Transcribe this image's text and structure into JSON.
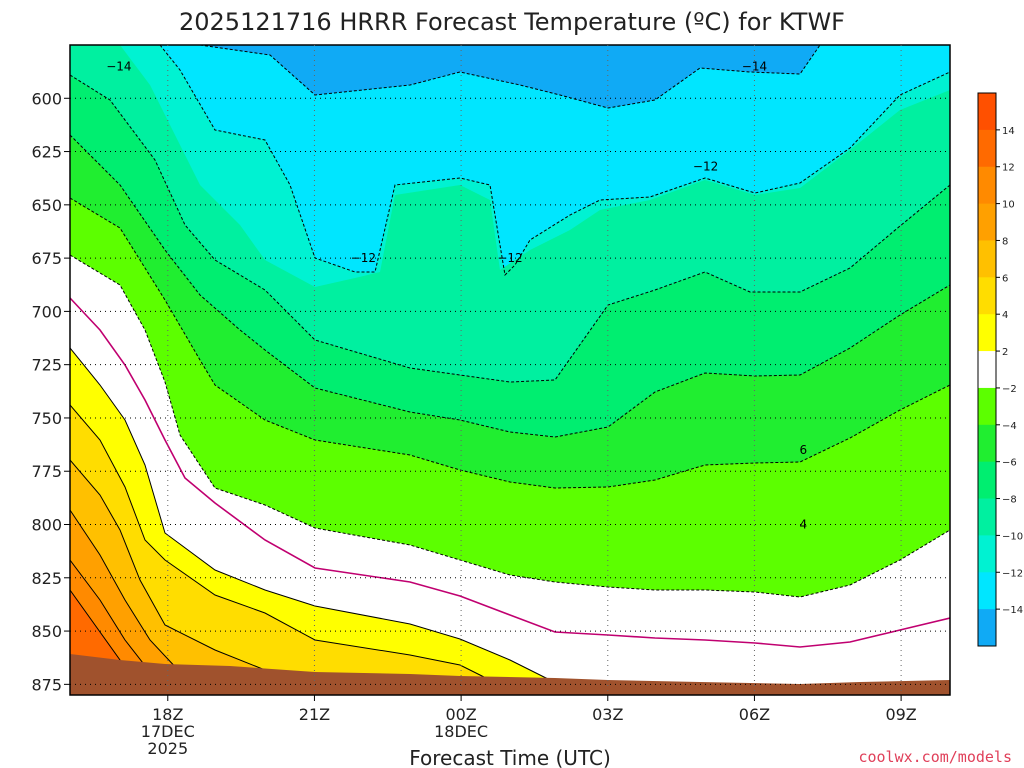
{
  "chart_data": {
    "type": "heatmap",
    "title": "2025121716 HRRR Forecast Temperature (ºC) for KTWF",
    "xlabel": "Forecast Time (UTC)",
    "ylabel": "",
    "xlim": [
      16,
      34
    ],
    "ylim": [
      575,
      880
    ],
    "y_ticks": [
      600,
      625,
      650,
      675,
      700,
      725,
      750,
      775,
      800,
      825,
      850,
      875
    ],
    "x_ticks": [
      {
        "hour": 18,
        "label": "18Z",
        "sub1": "17DEC",
        "sub2": "2025"
      },
      {
        "hour": 21,
        "label": "21Z",
        "sub1": "",
        "sub2": ""
      },
      {
        "hour": 24,
        "label": "00Z",
        "sub1": "18DEC",
        "sub2": ""
      },
      {
        "hour": 27,
        "label": "03Z",
        "sub1": "",
        "sub2": ""
      },
      {
        "hour": 30,
        "label": "06Z",
        "sub1": "",
        "sub2": ""
      },
      {
        "hour": 33,
        "label": "09Z",
        "sub1": "",
        "sub2": ""
      }
    ],
    "grid": true,
    "colorbar": {
      "position": "right",
      "bins": [
        {
          "lo": -16,
          "hi": -14,
          "color": "#10aaf5"
        },
        {
          "lo": -14,
          "hi": -12,
          "color": "#00e6ff"
        },
        {
          "lo": -12,
          "hi": -10,
          "color": "#00f2d2"
        },
        {
          "lo": -10,
          "hi": -8,
          "color": "#00f0a0"
        },
        {
          "lo": -8,
          "hi": -6,
          "color": "#00ee70"
        },
        {
          "lo": -6,
          "hi": -4,
          "color": "#20ee30"
        },
        {
          "lo": -4,
          "hi": -2,
          "color": "#5cff00"
        },
        {
          "lo": -2,
          "hi": 2,
          "color": "#ffffff"
        },
        {
          "lo": 2,
          "hi": 4,
          "color": "#ffff00"
        },
        {
          "lo": 4,
          "hi": 6,
          "color": "#ffdd00"
        },
        {
          "lo": 6,
          "hi": 8,
          "color": "#ffc000"
        },
        {
          "lo": 8,
          "hi": 10,
          "color": "#ffa000"
        },
        {
          "lo": 10,
          "hi": 12,
          "color": "#ff8a00"
        },
        {
          "lo": 12,
          "hi": 14,
          "color": "#ff6a00"
        },
        {
          "lo": 14,
          "hi": 16,
          "color": "#ff5000"
        }
      ],
      "labels": [
        "14",
        "12",
        "10",
        "8",
        "6",
        "4",
        "2",
        "−2",
        "−4",
        "−6",
        "−8",
        "−10",
        "−12",
        "−14"
      ]
    },
    "terrain_color": "#a0522d",
    "freezing_line_color": "#c00070",
    "contour_labels": [
      {
        "text": "−14",
        "hour": 17.0,
        "p": 585
      },
      {
        "text": "−14",
        "hour": 30.0,
        "p": 585
      },
      {
        "text": "−12",
        "hour": 29.0,
        "p": 632
      },
      {
        "text": "−12",
        "hour": 22.0,
        "p": 675
      },
      {
        "text": "−12",
        "hour": 25.0,
        "p": 675
      },
      {
        "text": "6",
        "hour": 31.0,
        "p": 765
      },
      {
        "text": "4",
        "hour": 31.0,
        "p": 800
      }
    ]
  },
  "credit": "coolwx.com/models"
}
